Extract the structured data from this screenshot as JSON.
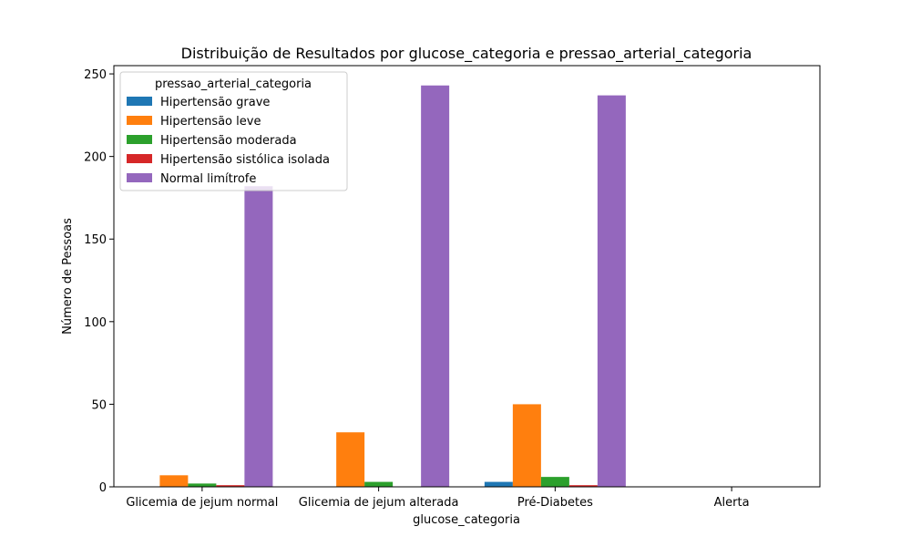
{
  "chart_data": {
    "type": "bar",
    "title": "Distribuição de Resultados por glucose_categoria e pressao_arterial_categoria",
    "xlabel": "glucose_categoria",
    "ylabel": "Número de Pessoas",
    "ylim": [
      0,
      255
    ],
    "yticks": [
      0,
      50,
      100,
      150,
      200,
      250
    ],
    "categories": [
      "Glicemia de jejum normal",
      "Glicemia de jejum alterada",
      "Pré-Diabetes",
      "Alerta"
    ],
    "legend": {
      "title": "pressao_arterial_categoria",
      "position": "top-left"
    },
    "grid": false,
    "series": [
      {
        "name": "Hipertensão grave",
        "color": "#1f77b4",
        "values": [
          0,
          0,
          3,
          0
        ]
      },
      {
        "name": "Hipertensão leve",
        "color": "#ff7f0e",
        "values": [
          7,
          33,
          50,
          0
        ]
      },
      {
        "name": "Hipertensão moderada",
        "color": "#2ca02c",
        "values": [
          2,
          3,
          6,
          0
        ]
      },
      {
        "name": "Hipertensão sistólica isolada",
        "color": "#d62728",
        "values": [
          1,
          0,
          1,
          0
        ]
      },
      {
        "name": "Normal limítrofe",
        "color": "#9467bd",
        "values": [
          182,
          243,
          237,
          0
        ]
      }
    ]
  }
}
